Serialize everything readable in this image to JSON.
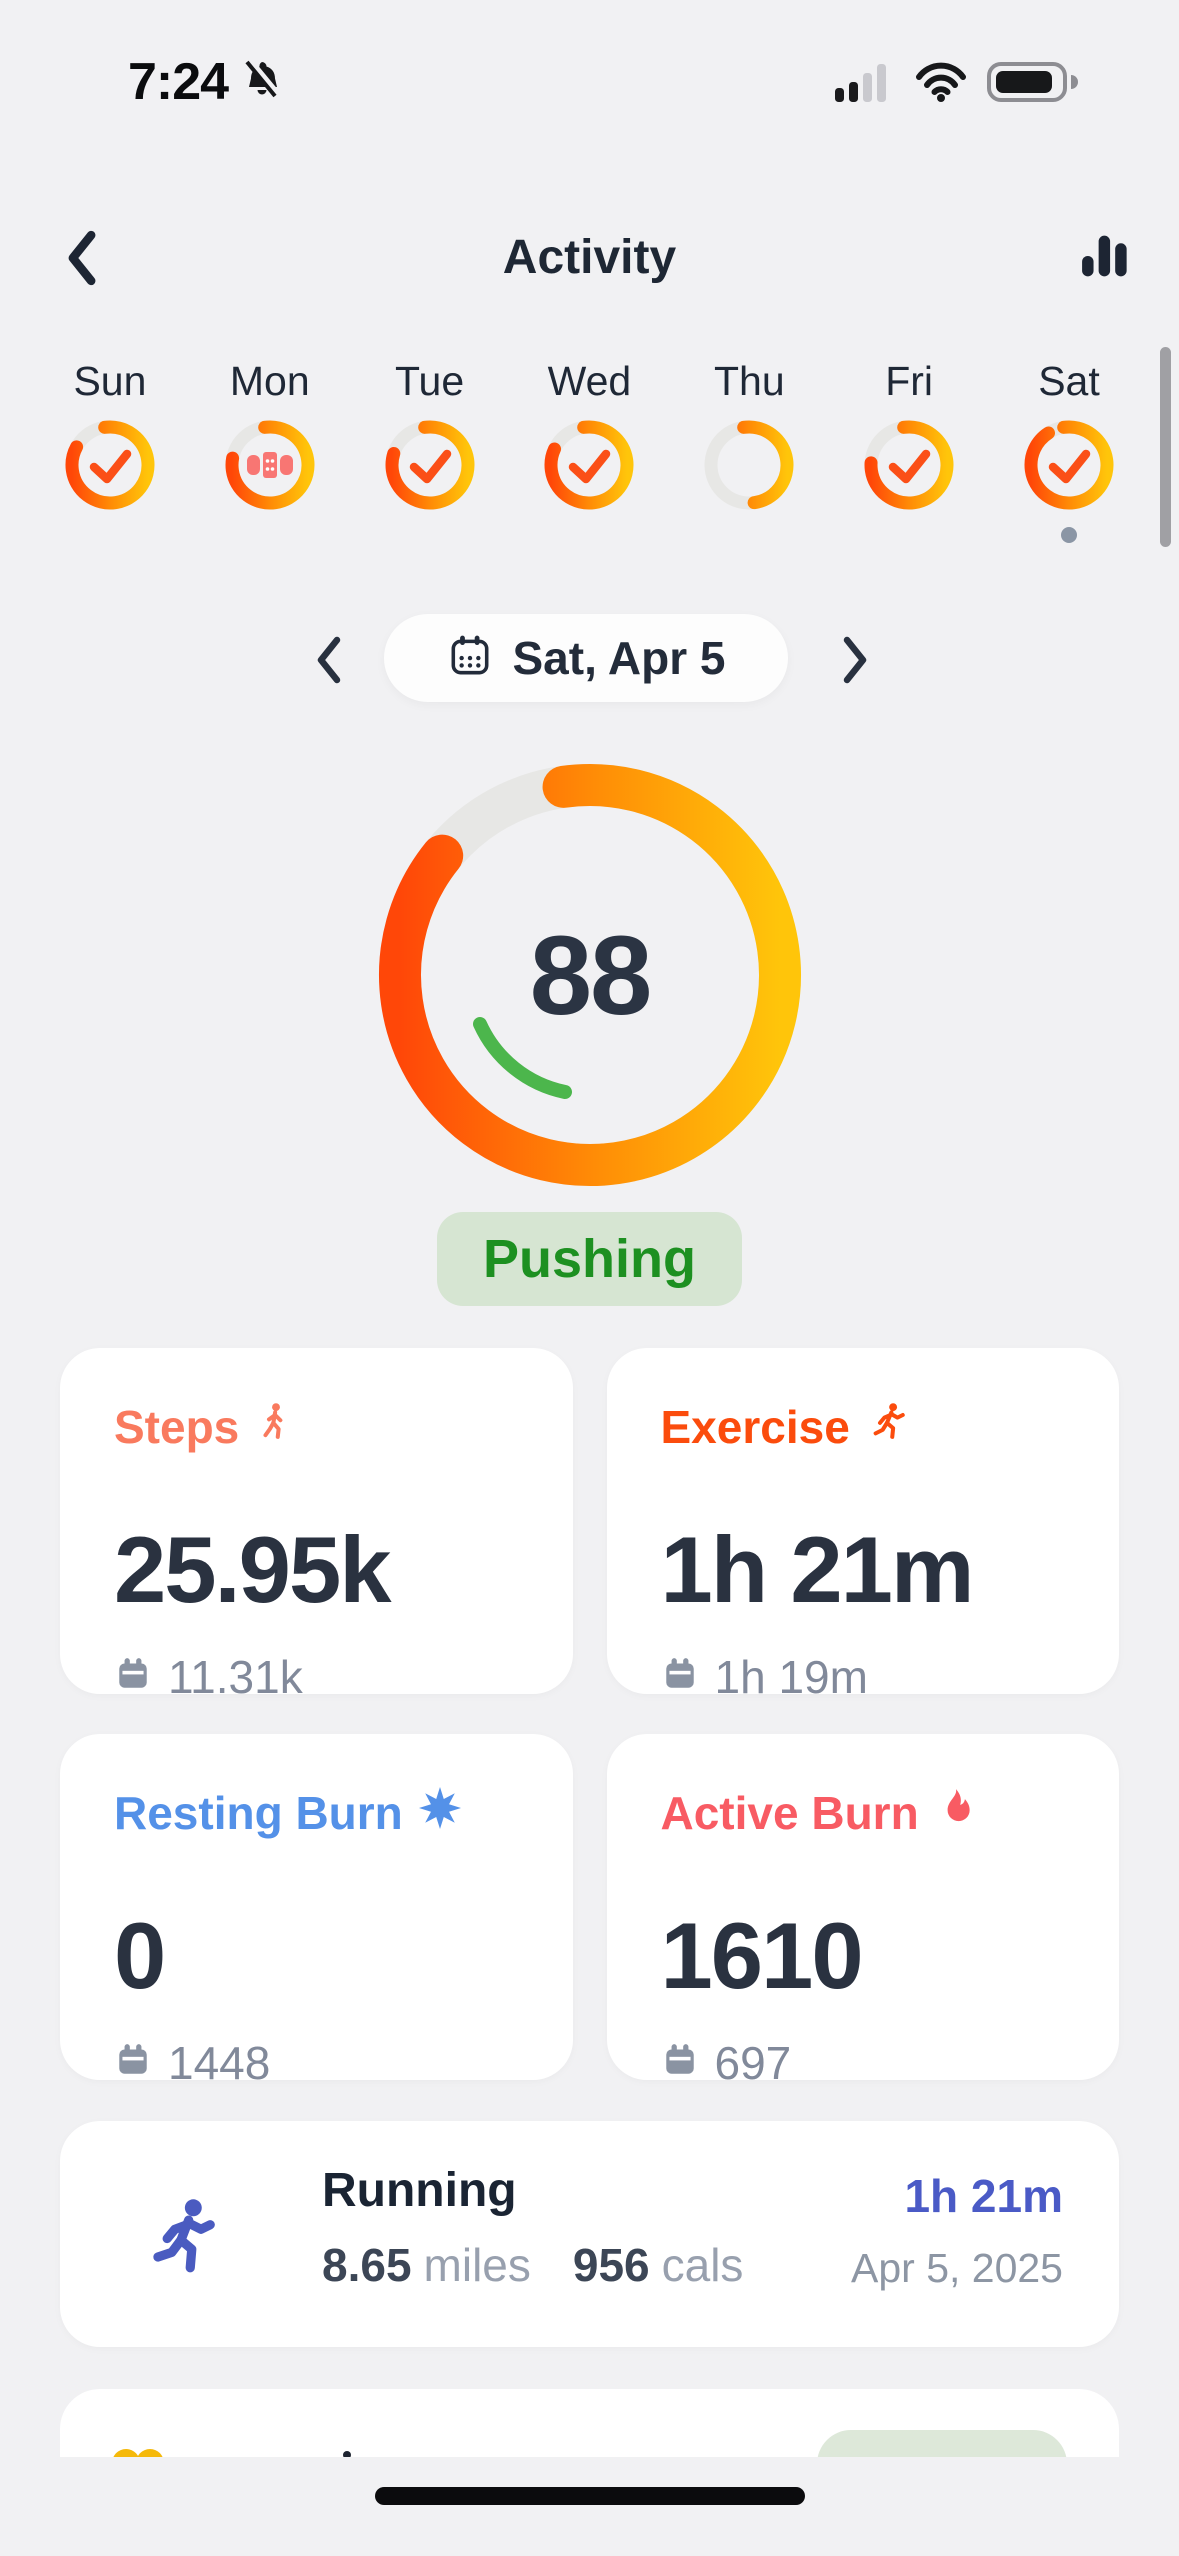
{
  "status_bar": {
    "time": "7:24",
    "muted": true,
    "signal_bars_filled": 2,
    "signal_bars_total": 4,
    "battery_percent": 75
  },
  "header": {
    "title": "Activity"
  },
  "week": {
    "days": [
      {
        "label": "Sun",
        "progress": 0.85,
        "status": "check",
        "selected": false
      },
      {
        "label": "Mon",
        "progress": 0.8,
        "status": "injury",
        "selected": false
      },
      {
        "label": "Tue",
        "progress": 0.82,
        "status": "check",
        "selected": false
      },
      {
        "label": "Wed",
        "progress": 0.84,
        "status": "check",
        "selected": false
      },
      {
        "label": "Thu",
        "progress": 0.5,
        "status": "none",
        "selected": false
      },
      {
        "label": "Fri",
        "progress": 0.78,
        "status": "check",
        "selected": false
      },
      {
        "label": "Sat",
        "progress": 0.93,
        "status": "check",
        "selected": true
      }
    ]
  },
  "date_selector": {
    "label": "Sat, Apr 5"
  },
  "score_ring": {
    "score": "88",
    "progress": 0.88,
    "status_label": "Pushing"
  },
  "stats": [
    {
      "label": "Steps",
      "icon": "walking-icon",
      "color": "#f97a5e",
      "value": "25.95k",
      "average": "11.31k"
    },
    {
      "label": "Exercise",
      "icon": "runner-icon",
      "color": "#fb4c0d",
      "value": "1h 21m",
      "average": "1h 19m"
    },
    {
      "label": "Resting Burn",
      "icon": "burst-icon",
      "color": "#5491e8",
      "value": "0",
      "average": "1448"
    },
    {
      "label": "Active Burn",
      "icon": "flame-icon",
      "color": "#f85b63",
      "value": "1610",
      "average": "697"
    }
  ],
  "activity": {
    "name": "Running",
    "distance": "8.65",
    "distance_unit": "miles",
    "calories": "956",
    "calories_unit": "cals",
    "duration": "1h 21m",
    "date": "Apr 5, 2025"
  },
  "colors": {
    "background": "#f1f1f3",
    "ring_gradient_start": "#ff4708",
    "ring_gradient_mid": "#ff8d06",
    "ring_gradient_end": "#ffc50a",
    "ring_track": "#e7e7e5",
    "check": "#fb4f17",
    "injury_bandaid": "#f87673",
    "green_arc": "#4cb64c",
    "badge_text": "#1d9021",
    "badge_bg": "#d6e5d2",
    "running_accent": "#4a5ac6",
    "dark_text": "#2a3240",
    "muted_text": "#81899a"
  }
}
